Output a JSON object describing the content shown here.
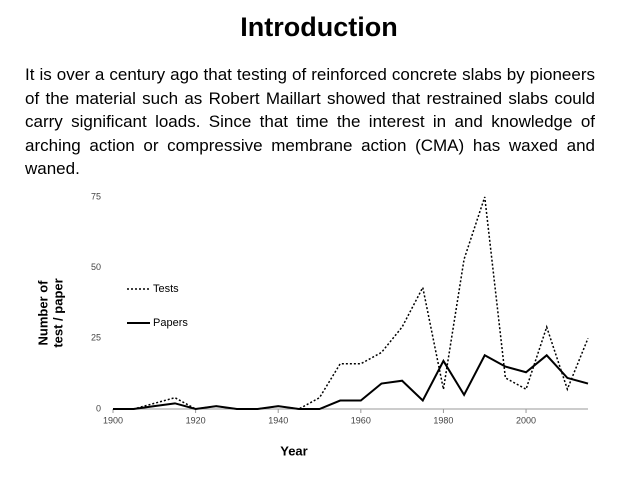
{
  "title": "Introduction",
  "paragraph": "It is over a century ago that testing of reinforced concrete slabs by pioneers of the material such as Robert Maillart showed that restrained slabs could carry significant loads. Since that time the interest in and knowledge of arching action or compressive membrane action (CMA) has waxed and waned.",
  "chart_data": {
    "type": "line",
    "xlabel": "Year",
    "ylabel_lines": [
      "Number of",
      "test / paper"
    ],
    "x": [
      1900,
      1905,
      1910,
      1915,
      1920,
      1925,
      1930,
      1935,
      1940,
      1945,
      1950,
      1955,
      1960,
      1965,
      1970,
      1975,
      1980,
      1985,
      1990,
      1995,
      2000,
      2005,
      2010,
      2015
    ],
    "series": [
      {
        "name": "Tests",
        "color": "#000000",
        "dash": "dotted",
        "values": [
          0,
          0,
          2,
          4,
          0,
          1,
          0,
          0,
          1,
          0,
          4,
          16,
          16,
          20,
          29,
          43,
          7,
          53,
          75,
          11,
          7,
          29,
          7,
          25
        ]
      },
      {
        "name": "Papers",
        "color": "#000000",
        "dash": "solid",
        "values": [
          0,
          0,
          1,
          2,
          0,
          1,
          0,
          0,
          1,
          0,
          0,
          3,
          3,
          9,
          10,
          3,
          17,
          5,
          19,
          15,
          13,
          19,
          11,
          9
        ]
      }
    ],
    "xlim": [
      1900,
      2015
    ],
    "xticks": [
      1900,
      1920,
      1940,
      1960,
      1980,
      2000
    ],
    "ylim": [
      0,
      75
    ],
    "yticks": [
      0,
      25,
      50,
      75
    ],
    "legend": "left"
  }
}
